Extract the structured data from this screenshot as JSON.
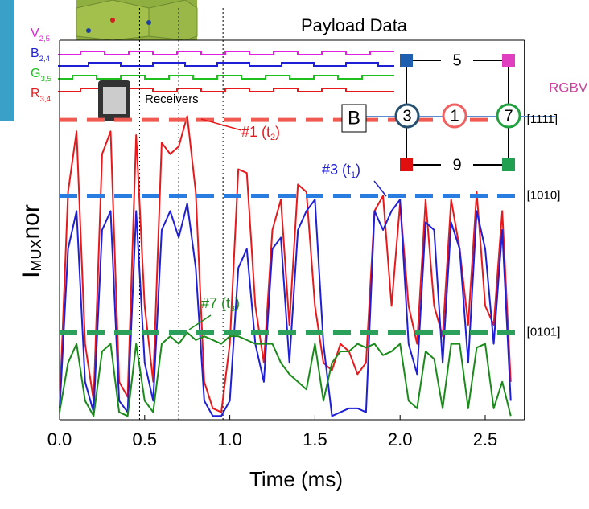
{
  "chart_data": {
    "type": "line",
    "title": "Payload Data",
    "xlabel": "Time (ms)",
    "ylabel": {
      "main": "I",
      "sub": "MUX",
      "tail": "nor"
    },
    "xlim": [
      0,
      2.73
    ],
    "ylim": [
      0,
      1
    ],
    "xticks": [
      {
        "value": 0,
        "label": "0.0"
      },
      {
        "value": 0.5,
        "label": "0.5"
      },
      {
        "value": 1,
        "label": "1.0"
      },
      {
        "value": 1.5,
        "label": "1.5"
      },
      {
        "value": 2,
        "label": "2.0"
      },
      {
        "value": 2.5,
        "label": "2.5"
      }
    ],
    "x": [
      0,
      0.05,
      0.1,
      0.15,
      0.2,
      0.25,
      0.3,
      0.35,
      0.4,
      0.45,
      0.5,
      0.55,
      0.6,
      0.65,
      0.7,
      0.75,
      0.8,
      0.85,
      0.9,
      0.95,
      1.0,
      1.05,
      1.1,
      1.15,
      1.2,
      1.25,
      1.3,
      1.35,
      1.4,
      1.45,
      1.5,
      1.55,
      1.6,
      1.65,
      1.7,
      1.75,
      1.8,
      1.85,
      1.9,
      1.95,
      2.0,
      2.05,
      2.1,
      2.15,
      2.2,
      2.25,
      2.3,
      2.35,
      2.4,
      2.45,
      2.5,
      2.55,
      2.6,
      2.65
    ],
    "series": [
      {
        "color": "#e8191c",
        "values": [
          0.03,
          0.6,
          0.76,
          0.2,
          0.05,
          0.7,
          0.76,
          0.1,
          0.06,
          0.75,
          0.3,
          0.1,
          0.73,
          0.7,
          0.72,
          0.8,
          0.6,
          0.1,
          0.03,
          0.02,
          0.2,
          0.66,
          0.65,
          0.3,
          0.15,
          0.5,
          0.58,
          0.25,
          0.62,
          0.6,
          0.3,
          0.15,
          0.13,
          0.2,
          0.18,
          0.12,
          0.15,
          0.55,
          0.59,
          0.3,
          0.57,
          0.3,
          0.2,
          0.58,
          0.3,
          0.22,
          0.58,
          0.45,
          0.25,
          0.6,
          0.3,
          0.25,
          0.55,
          0.1
        ]
      },
      {
        "color": "#1f1fd6",
        "values": [
          0.02,
          0.45,
          0.55,
          0.1,
          0.02,
          0.5,
          0.55,
          0.05,
          0.02,
          0.55,
          0.15,
          0.05,
          0.5,
          0.55,
          0.48,
          0.57,
          0.4,
          0.05,
          0.01,
          0.01,
          0.05,
          0.4,
          0.45,
          0.2,
          0.1,
          0.45,
          0.48,
          0.15,
          0.5,
          0.55,
          0.58,
          0.2,
          0.01,
          0.02,
          0.03,
          0.03,
          0.02,
          0.55,
          0.5,
          0.55,
          0.58,
          0.2,
          0.12,
          0.52,
          0.5,
          0.15,
          0.52,
          0.45,
          0.15,
          0.55,
          0.45,
          0.2,
          0.5,
          0.05
        ]
      },
      {
        "color": "#1a8a1a",
        "values": [
          0.02,
          0.15,
          0.2,
          0.05,
          0.01,
          0.18,
          0.2,
          0.02,
          0.01,
          0.2,
          0.05,
          0.02,
          0.2,
          0.22,
          0.2,
          0.23,
          0.21,
          0.22,
          0.21,
          0.2,
          0.22,
          0.22,
          0.21,
          0.2,
          0.2,
          0.2,
          0.15,
          0.12,
          0.1,
          0.08,
          0.2,
          0.05,
          0.15,
          0.18,
          0.18,
          0.2,
          0.19,
          0.2,
          0.17,
          0.18,
          0.2,
          0.05,
          0.03,
          0.18,
          0.16,
          0.03,
          0.2,
          0.2,
          0.03,
          0.19,
          0.2,
          0.03,
          0.1,
          0.01
        ]
      }
    ],
    "reference_lines": [
      {
        "value": 0.79,
        "color": "#f05a50",
        "label": "[1111]"
      },
      {
        "value": 0.59,
        "color": "#2a7de0",
        "label": "[1010]"
      },
      {
        "value": 0.23,
        "color": "#2aa05a",
        "label": "[0101]"
      }
    ],
    "vlines": [
      0.47,
      0.7,
      0.96
    ],
    "annotations": [
      {
        "text": "#1 (t",
        "sub": "2",
        "tail": ")",
        "color": "#e8191c"
      },
      {
        "text": "#3 (t",
        "sub": "1",
        "tail": ")",
        "color": "#1f1fd6"
      },
      {
        "text": "#7 (t",
        "sub": "3",
        "tail": ")",
        "color": "#1a8a1a"
      }
    ],
    "trace_labels": [
      {
        "main": "V",
        "sub": "2,5",
        "color": "#e020e0"
      },
      {
        "main": "B",
        "sub": "2,4",
        "color": "#1f1fd6"
      },
      {
        "main": "G",
        "sub": "3,5",
        "color": "#1ec01e"
      },
      {
        "main": "R",
        "sub": "3,4",
        "color": "#e8191c"
      }
    ],
    "receivers": "Receivers",
    "box_label": "B",
    "inset": {
      "top": "5",
      "bottom": "9",
      "left": "3",
      "center": "1",
      "right": "7",
      "legend": "RGBV"
    }
  }
}
